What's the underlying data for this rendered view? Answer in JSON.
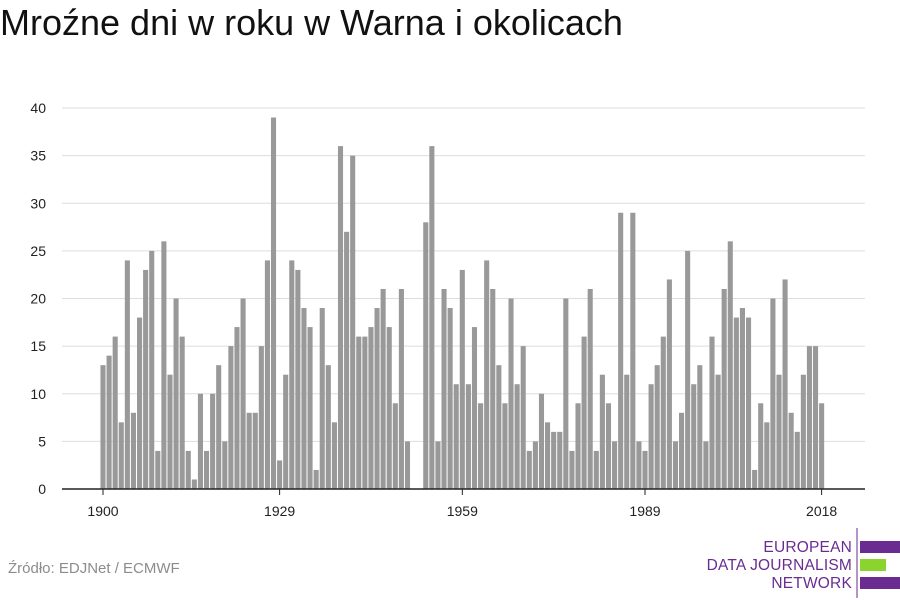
{
  "title": "Mroźne dni w roku w Warna i okolicach",
  "source": "Źródło: EDJNet / ECMWF",
  "logo": {
    "line1": "EUROPEAN",
    "line2": "DATA JOURNALISM",
    "line3": "NETWORK",
    "colors": {
      "purple": "#6a2c91",
      "green": "#8bd42e"
    }
  },
  "chart_data": {
    "type": "bar",
    "title": "Mroźne dni w roku w Warna i okolicach",
    "xlabel": "",
    "ylabel": "",
    "x_start": 1900,
    "x_end": 2018,
    "x_ticks": [
      1900,
      1929,
      1959,
      1989,
      2018
    ],
    "x_tick_labels": [
      "1900",
      "1929",
      "1959",
      "1989",
      "2018"
    ],
    "y_ticks": [
      0,
      5,
      10,
      15,
      20,
      25,
      30,
      35,
      40
    ],
    "ylim": [
      0,
      40
    ],
    "grid": true,
    "bar_color": "#999999",
    "years": [
      1900,
      1901,
      1902,
      1903,
      1904,
      1905,
      1906,
      1907,
      1908,
      1909,
      1910,
      1911,
      1912,
      1913,
      1914,
      1915,
      1916,
      1917,
      1918,
      1919,
      1920,
      1921,
      1922,
      1923,
      1924,
      1925,
      1926,
      1927,
      1928,
      1929,
      1930,
      1931,
      1932,
      1933,
      1934,
      1935,
      1936,
      1937,
      1938,
      1939,
      1940,
      1941,
      1942,
      1943,
      1944,
      1945,
      1946,
      1947,
      1948,
      1949,
      1950,
      1951,
      1952,
      1953,
      1954,
      1955,
      1956,
      1957,
      1958,
      1959,
      1960,
      1961,
      1962,
      1963,
      1964,
      1965,
      1966,
      1967,
      1968,
      1969,
      1970,
      1971,
      1972,
      1973,
      1974,
      1975,
      1976,
      1977,
      1978,
      1979,
      1980,
      1981,
      1982,
      1983,
      1984,
      1985,
      1986,
      1987,
      1988,
      1989,
      1990,
      1991,
      1992,
      1993,
      1994,
      1995,
      1996,
      1997,
      1998,
      1999,
      2000,
      2001,
      2002,
      2003,
      2004,
      2005,
      2006,
      2007,
      2008,
      2009,
      2010,
      2011,
      2012,
      2013,
      2014,
      2015,
      2016,
      2017,
      2018
    ],
    "values": [
      13,
      14,
      16,
      7,
      24,
      8,
      18,
      23,
      25,
      4,
      26,
      12,
      20,
      16,
      4,
      1,
      10,
      4,
      10,
      13,
      5,
      15,
      17,
      20,
      8,
      8,
      15,
      24,
      39,
      3,
      12,
      24,
      23,
      19,
      17,
      2,
      19,
      13,
      7,
      36,
      27,
      35,
      16,
      16,
      17,
      19,
      21,
      17,
      9,
      21,
      5,
      0,
      0,
      28,
      36,
      5,
      21,
      19,
      11,
      23,
      11,
      17,
      9,
      24,
      21,
      13,
      9,
      20,
      11,
      15,
      4,
      5,
      10,
      7,
      6,
      6,
      20,
      4,
      9,
      16,
      21,
      4,
      12,
      9,
      5,
      29,
      12,
      29,
      5,
      4,
      11,
      13,
      16,
      22,
      5,
      8,
      25,
      11,
      13,
      5,
      16,
      12,
      21,
      26,
      18,
      19,
      18,
      2,
      9,
      7,
      20,
      12,
      22,
      8,
      6,
      12,
      15,
      15,
      9
    ]
  }
}
